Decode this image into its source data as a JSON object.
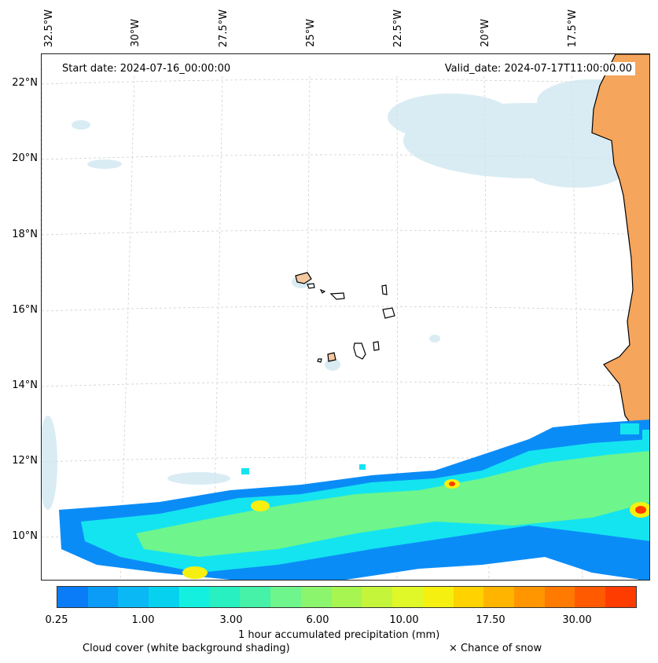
{
  "map": {
    "top_axis_labels": [
      "32.5°W",
      "30°W",
      "27.5°W",
      "25°W",
      "22.5°W",
      "20°W",
      "17.5°W"
    ],
    "left_axis_labels": [
      "22°N",
      "20°N",
      "18°N",
      "16°N",
      "14°N",
      "12°N",
      "10°N"
    ],
    "start_date": "Start date: 2024-07-16_00:00:00",
    "valid_date": "Valid_date: 2024-07-17T11:00:00.00"
  },
  "colorbar": {
    "colors": [
      "#0a7cf7",
      "#0a9cf7",
      "#0ab8f5",
      "#06d2f0",
      "#14f0e0",
      "#28f0c0",
      "#45f2a8",
      "#6ef58c",
      "#8cf56e",
      "#a6f550",
      "#c4f53a",
      "#e0f828",
      "#f5f010",
      "#ffd200",
      "#ffb400",
      "#ff9600",
      "#ff7a00",
      "#ff5a00",
      "#ff3c00"
    ],
    "tick_labels": [
      "0.25",
      "1.00",
      "3.00",
      "6.00",
      "10.00",
      "17.50",
      "30.00"
    ],
    "title": "1 hour accumulated precipitation (mm)"
  },
  "legend": {
    "cloud_cover": "Cloud cover (white background shading)",
    "snow": "× Chance of snow"
  },
  "colors": {
    "land": "#f5a55c",
    "cloud": "#cde6ef",
    "precip_blue": "#0a8cf7",
    "precip_cyan": "#14e4f0",
    "precip_green": "#6ef58c",
    "precip_yellow": "#f5f010",
    "precip_red": "#ff3c00"
  }
}
